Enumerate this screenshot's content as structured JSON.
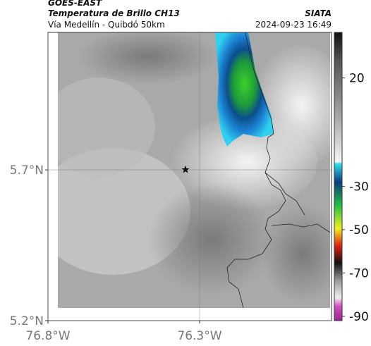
{
  "header": {
    "title": "GOES-EAST",
    "subtitle": "Temperatura de Brillo CH13",
    "route": "Vía Medellín - Quibdó 50km",
    "source": "SIATA",
    "timestamp": "2024-09-23 16:49"
  },
  "map": {
    "lat_range": [
      5.2,
      6.156
    ],
    "lon_range": [
      -76.8,
      -75.865
    ],
    "lat_ticks": [
      {
        "value": 5.7,
        "label": "5.7°N"
      },
      {
        "value": 5.2,
        "label": "5.2°N"
      }
    ],
    "lon_ticks": [
      {
        "value": -76.8,
        "label": "76.8°W"
      },
      {
        "value": -76.3,
        "label": "76.3°W"
      }
    ],
    "colorbar": {
      "range": [
        41,
        -92
      ],
      "ticks": [
        20,
        -30,
        -50,
        -70,
        -90
      ]
    }
  }
}
